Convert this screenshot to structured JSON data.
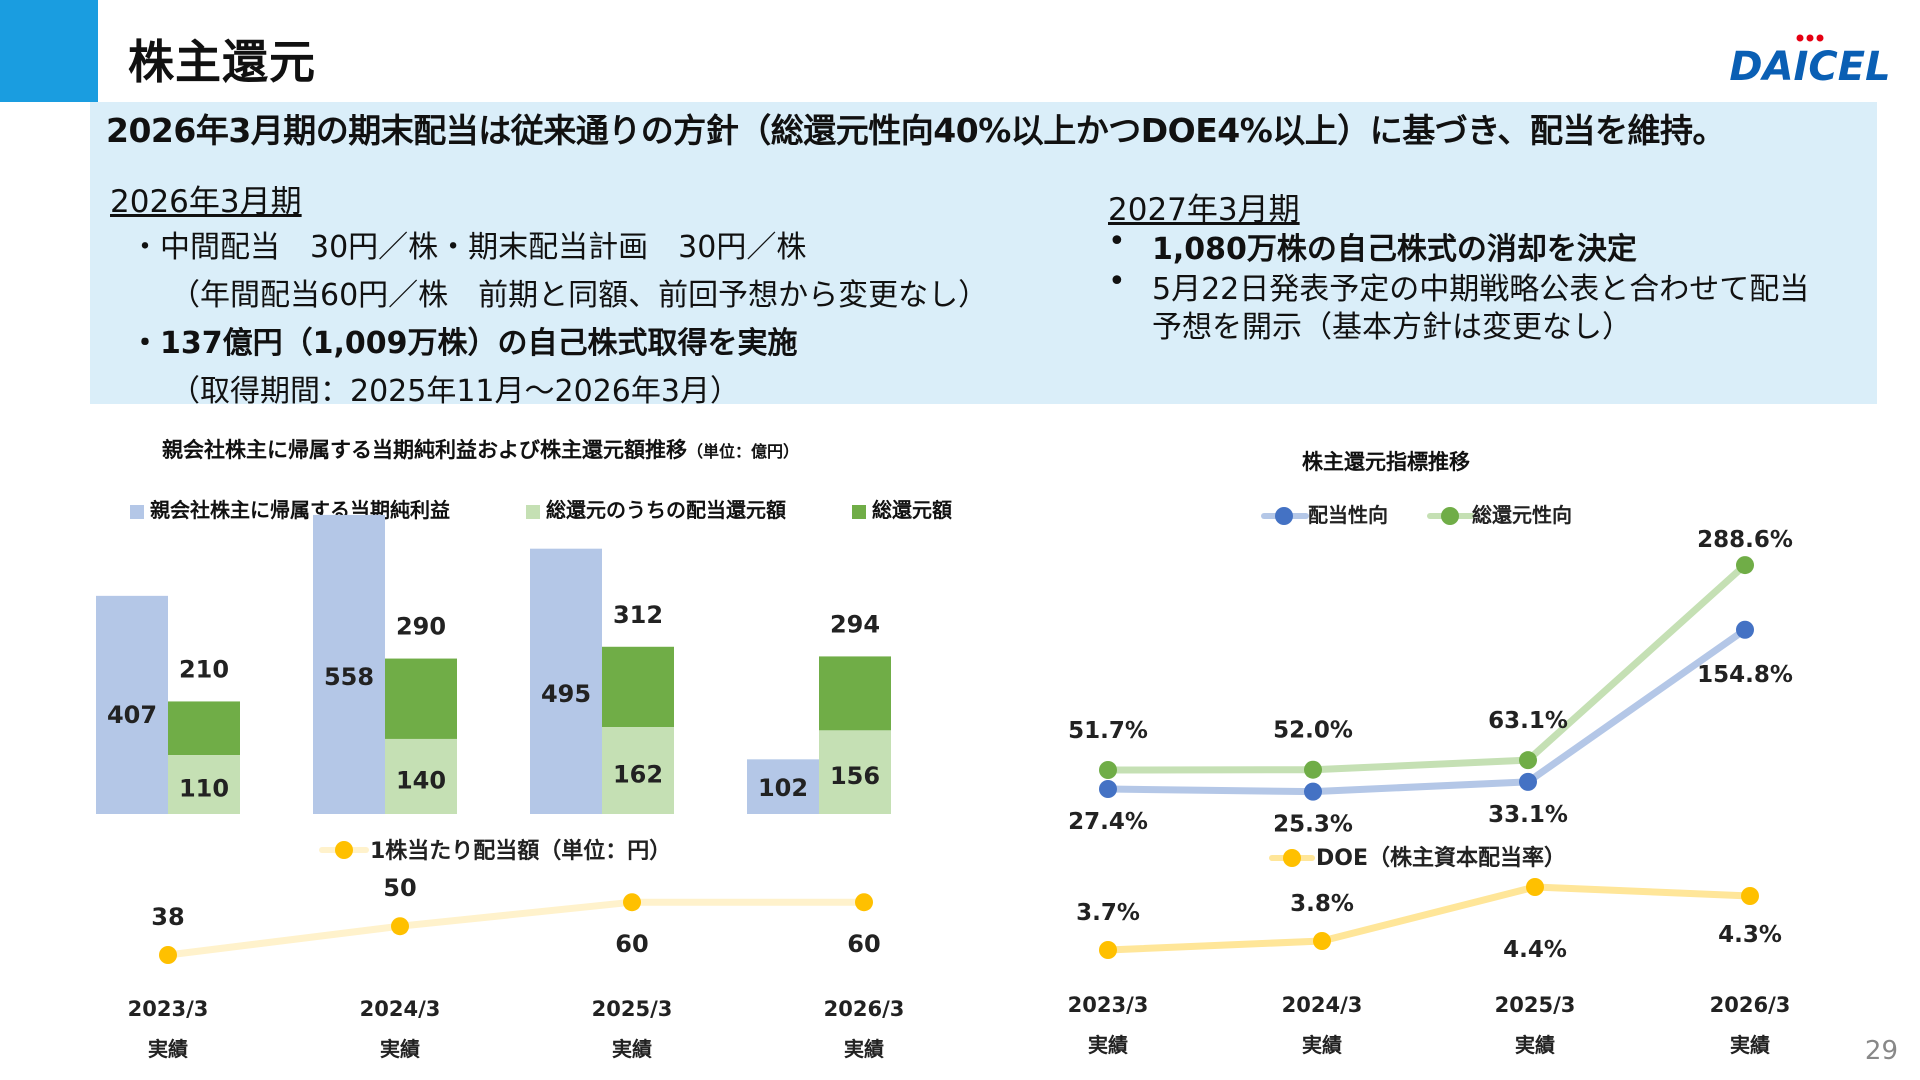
{
  "header": {
    "title": "株主還元",
    "logo_text": "DAICEL",
    "headline": "2026年3月期の期末配当は従来通りの方針（総還元性向40%以上かつDOE4%以上）に基づき、配当を維持。"
  },
  "left_section": {
    "title": "2026年3月期",
    "lines": [
      "・中間配当　30円／株・期末配当計画　30円／株",
      "（年間配当60円／株　前期と同額、前回予想から変更なし）",
      "・137億円（1,009万株）の自己株式取得を実施",
      "（取得期間：2025年11月～2026年3月）"
    ]
  },
  "right_section": {
    "title": "2027年3月期",
    "bullets": [
      "•",
      "1,080万株の自己株式の消却を決定",
      "•",
      "5月22日発表予定の中期戦略公表と合わせて配当",
      "予想を開示（基本方針は変更なし）"
    ]
  },
  "colors": {
    "accent": "#1a9de0",
    "band": "#daeef9",
    "net_income": "#b4c7e7",
    "dividend": "#c5e0b4",
    "total_return": "#70ad47",
    "dps_line": "#fff2cc",
    "dps_point": "#ffc000",
    "payout_line": "#b4c7e7",
    "payout_point": "#4472c4",
    "total_ratio_line": "#c5e0b4",
    "total_ratio_point": "#70ad47",
    "doe_line": "#ffe699",
    "doe_point": "#ffc000"
  },
  "chart_data": [
    {
      "type": "bar",
      "title": "親会社株主に帰属する当期純利益および株主還元額推移",
      "unit": "（単位：億円）",
      "categories": [
        "2023/3",
        "2024/3",
        "2025/3",
        "2026/3"
      ],
      "category_sub": [
        "実績",
        "実績",
        "実績",
        "実績"
      ],
      "series": [
        {
          "name": "親会社株主に帰属する当期純利益",
          "values": [
            407,
            558,
            495,
            102
          ]
        },
        {
          "name": "総還元のうちの配当還元額",
          "values": [
            110,
            140,
            162,
            156
          ]
        },
        {
          "name": "総還元額",
          "values": [
            210,
            290,
            312,
            294
          ]
        }
      ]
    },
    {
      "type": "line",
      "title": "1株当たり配当額（単位：円）",
      "categories": [
        "2023/3",
        "2024/3",
        "2025/3",
        "2026/3"
      ],
      "series": [
        {
          "name": "1株当たり配当額（単位：円）",
          "values": [
            38,
            50,
            60,
            60
          ]
        }
      ]
    },
    {
      "type": "line",
      "title": "株主還元指標推移",
      "categories": [
        "2023/3",
        "2024/3",
        "2025/3",
        "2026/3"
      ],
      "category_sub": [
        "実績",
        "実績",
        "実績",
        "実績"
      ],
      "series": [
        {
          "name": "配当性向",
          "values": [
            27.4,
            25.3,
            33.1,
            154.8
          ],
          "labels": [
            "27.4%",
            "25.3%",
            "33.1%",
            "154.8%"
          ]
        },
        {
          "name": "総還元性向",
          "values": [
            51.7,
            52.0,
            63.1,
            288.6
          ],
          "labels": [
            "51.7%",
            "52.0%",
            "63.1%",
            "288.6%"
          ]
        }
      ]
    },
    {
      "type": "line",
      "title": "DOE（株主資本配当率）",
      "categories": [
        "2023/3",
        "2024/3",
        "2025/3",
        "2026/3"
      ],
      "series": [
        {
          "name": "DOE（株主資本配当率）",
          "values": [
            3.7,
            3.8,
            4.4,
            4.3
          ],
          "labels": [
            "3.7%",
            "3.8%",
            "4.4%",
            "4.3%"
          ]
        }
      ]
    }
  ],
  "page_number": "29"
}
